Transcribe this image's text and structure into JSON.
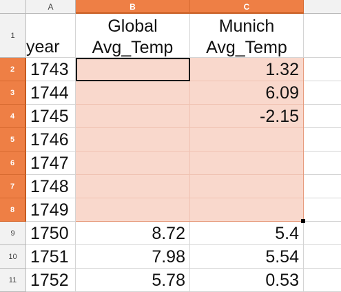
{
  "columns": [
    {
      "letter": "A",
      "selected": false
    },
    {
      "letter": "B",
      "selected": true
    },
    {
      "letter": "C",
      "selected": true
    }
  ],
  "header_row": {
    "row_number": "1",
    "year_label": "year",
    "global_label": "Global Avg_Temp",
    "munich_label": "Munich Avg_Temp"
  },
  "rows": [
    {
      "row": "2",
      "year": "1743",
      "global": "",
      "munich": "1.32",
      "selected": true
    },
    {
      "row": "3",
      "year": "1744",
      "global": "",
      "munich": "6.09",
      "selected": true
    },
    {
      "row": "4",
      "year": "1745",
      "global": "",
      "munich": "-2.15",
      "selected": true
    },
    {
      "row": "5",
      "year": "1746",
      "global": "",
      "munich": "",
      "selected": true
    },
    {
      "row": "6",
      "year": "1747",
      "global": "",
      "munich": "",
      "selected": true
    },
    {
      "row": "7",
      "year": "1748",
      "global": "",
      "munich": "",
      "selected": true
    },
    {
      "row": "8",
      "year": "1749",
      "global": "",
      "munich": "",
      "selected": true
    },
    {
      "row": "9",
      "year": "1750",
      "global": "8.72",
      "munich": "5.4",
      "selected": false
    },
    {
      "row": "10",
      "year": "1751",
      "global": "7.98",
      "munich": "5.54",
      "selected": false
    },
    {
      "row": "11",
      "year": "1752",
      "global": "5.78",
      "munich": "0.53",
      "selected": false
    }
  ],
  "colors": {
    "selection_header": "#ee7f45",
    "selection_fill": "#f9d8cc"
  }
}
